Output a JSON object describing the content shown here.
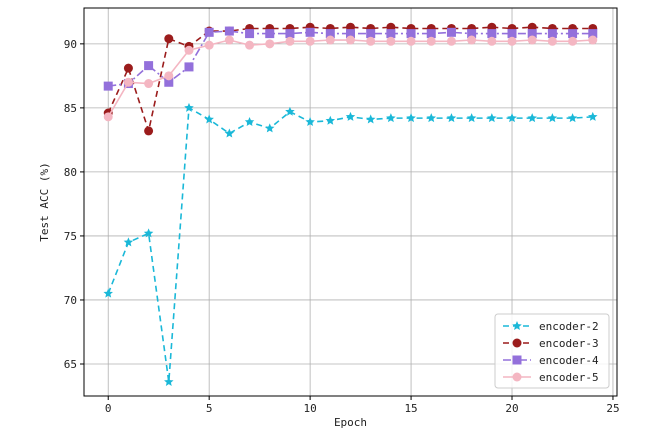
{
  "chart_data": {
    "type": "line",
    "title": "",
    "xlabel": "Epoch",
    "ylabel": "Test ACC (%)",
    "xlim": [
      -1.2,
      25.2
    ],
    "ylim": [
      62.5,
      92.8
    ],
    "xticks": [
      0,
      5,
      10,
      15,
      20,
      25
    ],
    "yticks": [
      65,
      70,
      75,
      80,
      85,
      90
    ],
    "grid": true,
    "legend_position": "bottom-right",
    "x": [
      0,
      1,
      2,
      3,
      4,
      5,
      6,
      7,
      8,
      9,
      10,
      11,
      12,
      13,
      14,
      15,
      16,
      17,
      18,
      19,
      20,
      21,
      22,
      23,
      24
    ],
    "series": [
      {
        "name": "encoder-2",
        "color": "#1ab8d8",
        "linestyle": "dashed",
        "marker": "star",
        "values": [
          70.5,
          74.5,
          75.2,
          63.6,
          85.0,
          84.1,
          83.0,
          83.9,
          83.4,
          84.7,
          83.9,
          84.0,
          84.3,
          84.1,
          84.2,
          84.2,
          84.2,
          84.2,
          84.2,
          84.2,
          84.2,
          84.2,
          84.2,
          84.2,
          84.3
        ]
      },
      {
        "name": "encoder-3",
        "color": "#9b1c1c",
        "linestyle": "dashed",
        "marker": "circle",
        "values": [
          84.6,
          88.1,
          83.2,
          90.4,
          89.8,
          91.0,
          91.0,
          91.2,
          91.2,
          91.2,
          91.3,
          91.2,
          91.3,
          91.2,
          91.3,
          91.2,
          91.2,
          91.2,
          91.2,
          91.3,
          91.2,
          91.3,
          91.2,
          91.2,
          91.2
        ]
      },
      {
        "name": "encoder-4",
        "color": "#9370db",
        "linestyle": "dashdot",
        "marker": "square",
        "values": [
          86.7,
          86.9,
          88.3,
          87.0,
          88.2,
          90.9,
          91.0,
          90.8,
          90.8,
          90.8,
          90.9,
          90.8,
          90.8,
          90.8,
          90.8,
          90.8,
          90.8,
          90.9,
          90.8,
          90.8,
          90.8,
          90.8,
          90.8,
          90.8,
          90.8
        ]
      },
      {
        "name": "encoder-5",
        "color": "#f4b6c2",
        "linestyle": "solid",
        "marker": "circle",
        "values": [
          84.3,
          87.0,
          86.9,
          87.5,
          89.5,
          89.9,
          90.3,
          89.9,
          90.0,
          90.2,
          90.2,
          90.3,
          90.3,
          90.2,
          90.2,
          90.2,
          90.2,
          90.2,
          90.3,
          90.2,
          90.2,
          90.3,
          90.2,
          90.2,
          90.3
        ]
      }
    ]
  }
}
